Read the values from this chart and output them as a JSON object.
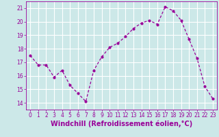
{
  "x": [
    0,
    1,
    2,
    3,
    4,
    5,
    6,
    7,
    8,
    9,
    10,
    11,
    12,
    13,
    14,
    15,
    16,
    17,
    18,
    19,
    20,
    21,
    22,
    23
  ],
  "y": [
    17.5,
    16.8,
    16.8,
    15.9,
    16.4,
    15.3,
    14.7,
    14.1,
    16.4,
    17.4,
    18.1,
    18.4,
    18.9,
    19.5,
    19.9,
    20.1,
    19.8,
    21.1,
    20.8,
    20.1,
    18.7,
    17.3,
    15.2,
    14.3
  ],
  "line_color": "#990099",
  "marker": "o",
  "markersize": 2,
  "linewidth": 0.9,
  "xlabel": "Windchill (Refroidissement éolien,°C)",
  "xlabel_fontsize": 7,
  "ylim": [
    13.5,
    21.5
  ],
  "yticks": [
    14,
    15,
    16,
    17,
    18,
    19,
    20,
    21
  ],
  "xticks": [
    0,
    1,
    2,
    3,
    4,
    5,
    6,
    7,
    8,
    9,
    10,
    11,
    12,
    13,
    14,
    15,
    16,
    17,
    18,
    19,
    20,
    21,
    22,
    23
  ],
  "tick_fontsize": 5.5,
  "bg_color": "#cce8e8",
  "grid_color": "#ffffff",
  "spine_color": "#990099"
}
